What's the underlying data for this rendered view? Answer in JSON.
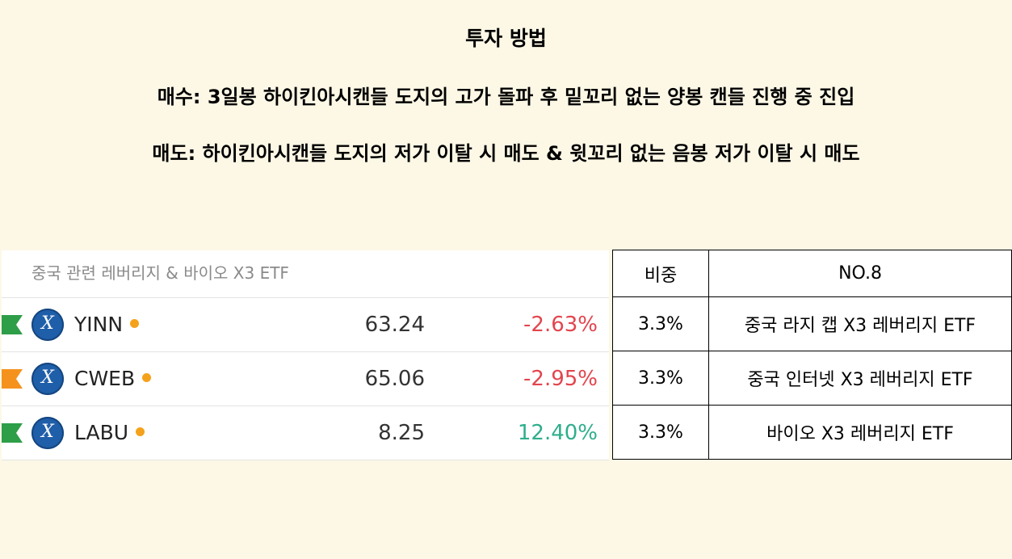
{
  "heading": {
    "title": "투자 방법",
    "buy_rule": "매수: 3일봉 하이킨아시캔들 도지의 고가 돌파 후 밑꼬리 없는 양봉 캔들 진행 중 진입",
    "sell_rule": "매도: 하이킨아시캔들 도지의 저가 이탈 시 매도 & 윗꼬리 없는 음봉 저가 이탈 시 매도"
  },
  "watchlist": {
    "title": "중국 관련 레버리지 & 바이오 X3 ETF",
    "colors": {
      "flag_green": "#2e9e48",
      "flag_orange": "#f5921e",
      "negative": "#e2454e",
      "positive": "#2fae8c",
      "dot": "#f4a21c"
    },
    "rows": [
      {
        "ticker": "YINN",
        "price": "63.24",
        "change": "-2.63%",
        "direction": "negative",
        "flag": "green-flag-icon",
        "logo": "X"
      },
      {
        "ticker": "CWEB",
        "price": "65.06",
        "change": "-2.95%",
        "direction": "negative",
        "flag": "orange-flag-icon",
        "logo": "X"
      },
      {
        "ticker": "LABU",
        "price": "8.25",
        "change": "12.40%",
        "direction": "positive",
        "flag": "green-flag-icon",
        "logo": "X"
      }
    ]
  },
  "allocation": {
    "header_weight": "비중",
    "header_name": "NO.8",
    "rows": [
      {
        "weight": "3.3%",
        "name": "중국 라지 캡 X3 레버리지 ETF"
      },
      {
        "weight": "3.3%",
        "name": "중국 인터넷 X3 레버리지 ETF"
      },
      {
        "weight": "3.3%",
        "name": "바이오 X3 레버리지 ETF"
      }
    ]
  }
}
